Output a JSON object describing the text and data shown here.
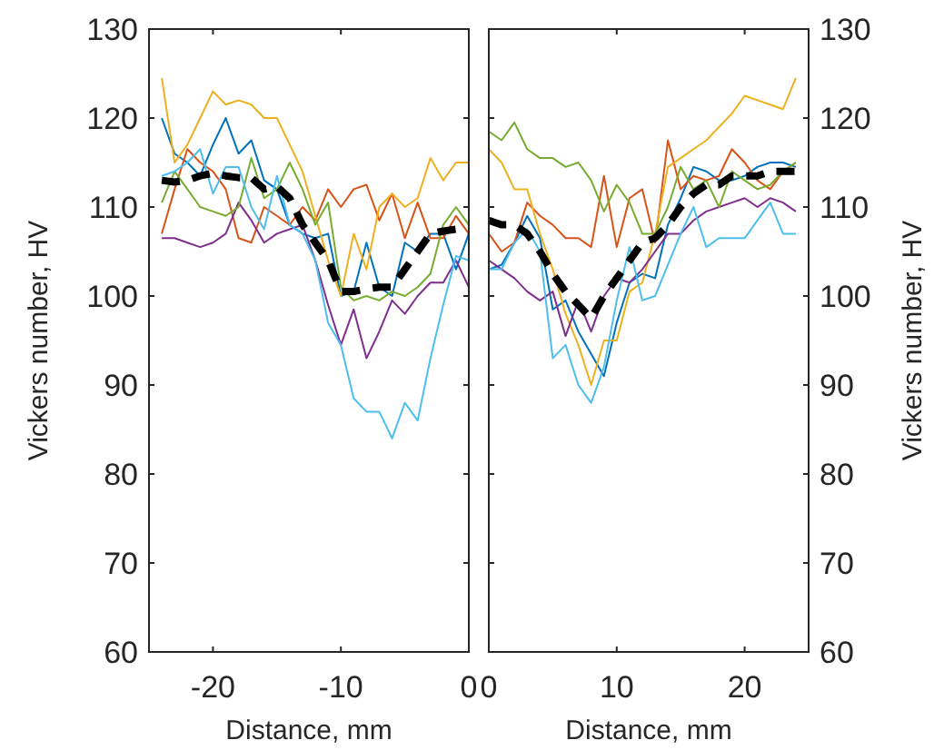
{
  "chart_data": [
    {
      "type": "line",
      "xlabel": "Distance, mm",
      "ylabel": "Vickers number, HV",
      "xlim": [
        -25,
        0
      ],
      "xticks": [
        -20,
        -10,
        0
      ],
      "ylim": [
        60,
        130
      ],
      "yticks": [
        60,
        70,
        80,
        90,
        100,
        110,
        120,
        130
      ],
      "x": [
        -24,
        -23,
        -22,
        -21,
        -20,
        -19,
        -18,
        -17,
        -16,
        -15,
        -14,
        -13,
        -12,
        -11,
        -10,
        -9,
        -8,
        -7,
        -6,
        -5,
        -4,
        -3,
        -2,
        -1,
        0
      ],
      "series": [
        {
          "color": "#0072bd",
          "values": [
            120,
            116,
            115,
            113.5,
            117,
            120,
            116,
            117.5,
            113,
            112,
            108,
            107,
            106.5,
            107,
            100,
            100.5,
            106,
            101,
            100,
            106,
            105,
            107,
            107,
            103,
            107
          ]
        },
        {
          "color": "#d95319",
          "values": [
            107,
            112,
            116.5,
            115,
            114,
            112,
            106.5,
            106,
            110,
            109,
            108,
            110,
            108.5,
            112,
            110,
            112,
            112.5,
            108.5,
            111.5,
            106.5,
            110.5,
            106.5,
            106.5,
            109,
            107
          ]
        },
        {
          "color": "#edb120",
          "values": [
            124.5,
            115,
            117,
            120,
            123,
            121.5,
            122,
            121.5,
            120,
            120,
            117,
            114,
            109,
            104,
            100,
            107,
            103,
            110,
            111.5,
            110,
            111,
            115.5,
            113,
            115,
            115
          ]
        },
        {
          "color": "#7e2f8e",
          "values": [
            106.5,
            106.5,
            106,
            105.5,
            106,
            107,
            110.5,
            108.5,
            106,
            107,
            107.5,
            108,
            104,
            99,
            94.5,
            98.5,
            93,
            96,
            99.5,
            98,
            100,
            101.5,
            101.5,
            104,
            101
          ]
        },
        {
          "color": "#77ac30",
          "values": [
            110.5,
            114,
            112,
            110,
            109.5,
            109,
            110,
            115.5,
            111,
            112,
            115,
            112,
            108,
            110.5,
            101,
            99.5,
            100,
            99.5,
            100.5,
            100,
            101,
            102.5,
            108,
            110,
            108
          ]
        },
        {
          "color": "#4dbeee",
          "values": [
            113.5,
            114,
            115,
            116.5,
            111.5,
            114.5,
            114.5,
            110,
            107.5,
            113.5,
            108,
            107,
            104,
            97,
            94.5,
            88.5,
            87,
            87,
            84,
            88,
            86,
            93,
            99,
            104.5,
            104
          ]
        },
        {
          "color": "#000000",
          "line_style": "dashed",
          "values": [
            113,
            112.8,
            113,
            113.5,
            113.8,
            113.5,
            113.3,
            113.3,
            112,
            112.3,
            111,
            108,
            106,
            104,
            100.5,
            100.5,
            100.8,
            101,
            101,
            103,
            105,
            107,
            107.3,
            107.5,
            107.3
          ]
        }
      ]
    },
    {
      "type": "line",
      "xlabel": "Distance, mm",
      "y2label": "Vickers number, HV",
      "xlim": [
        0,
        25
      ],
      "xticks": [
        0,
        10,
        20
      ],
      "y2lim": [
        60,
        130
      ],
      "y2ticks": [
        60,
        70,
        80,
        90,
        100,
        110,
        120,
        130
      ],
      "x": [
        0,
        1,
        2,
        3,
        4,
        5,
        6,
        7,
        8,
        9,
        10,
        11,
        12,
        13,
        14,
        15,
        16,
        17,
        18,
        19,
        20,
        21,
        22,
        23,
        24
      ],
      "series": [
        {
          "axis": "y2",
          "color": "#0072bd",
          "values": [
            103,
            103.5,
            106,
            109,
            106.5,
            98.5,
            99.5,
            96,
            93.5,
            91,
            97,
            101.5,
            102.5,
            102,
            108,
            111,
            114.5,
            114,
            113,
            113,
            113.5,
            114.5,
            115,
            115,
            114.5
          ]
        },
        {
          "axis": "y2",
          "color": "#d95319",
          "values": [
            107,
            105,
            106,
            110.5,
            109,
            108,
            106.5,
            106.5,
            105.5,
            113.5,
            105.5,
            111,
            112,
            106,
            117.5,
            112,
            113.5,
            113,
            113.5,
            116.5,
            115,
            113,
            112,
            114,
            115
          ]
        },
        {
          "axis": "y2",
          "color": "#edb120",
          "values": [
            116.5,
            115,
            112,
            112,
            107,
            103,
            98,
            94.5,
            90,
            95,
            95,
            100.5,
            101.5,
            107,
            114.5,
            115.5,
            116.5,
            117.5,
            119,
            120.5,
            122.5,
            122,
            121.5,
            121,
            124.5
          ]
        },
        {
          "axis": "y2",
          "color": "#7e2f8e",
          "values": [
            104,
            103,
            102,
            100.5,
            99.5,
            100.5,
            95.5,
            99.5,
            96,
            100,
            102,
            101.5,
            103,
            105,
            107,
            107,
            108.5,
            109.5,
            110,
            110.5,
            111,
            110,
            111,
            110.5,
            109.5
          ]
        },
        {
          "axis": "y2",
          "color": "#77ac30",
          "values": [
            118.5,
            117.5,
            119.5,
            116.5,
            115.5,
            115.5,
            114.5,
            115,
            113,
            109.5,
            112.5,
            110.5,
            107,
            107,
            110,
            114.5,
            112,
            113,
            110,
            114,
            113,
            112,
            112.5,
            114,
            115
          ]
        },
        {
          "axis": "y2",
          "color": "#4dbeee",
          "values": [
            103,
            103,
            106,
            107.5,
            105,
            93,
            94.5,
            90,
            88,
            92,
            99.5,
            105.5,
            99.5,
            100,
            103.5,
            107,
            110,
            105.5,
            106.5,
            106.5,
            106.5,
            108.5,
            110.5,
            107,
            107
          ]
        },
        {
          "axis": "y2",
          "color": "#000000",
          "line_style": "dashed",
          "values": [
            108.5,
            108,
            108,
            107,
            105,
            102.5,
            100.5,
            99,
            97.5,
            100,
            102,
            104,
            106,
            106.5,
            108,
            110,
            111.5,
            112.5,
            112.5,
            113.5,
            113.5,
            113.5,
            114,
            114,
            114
          ]
        }
      ]
    }
  ]
}
